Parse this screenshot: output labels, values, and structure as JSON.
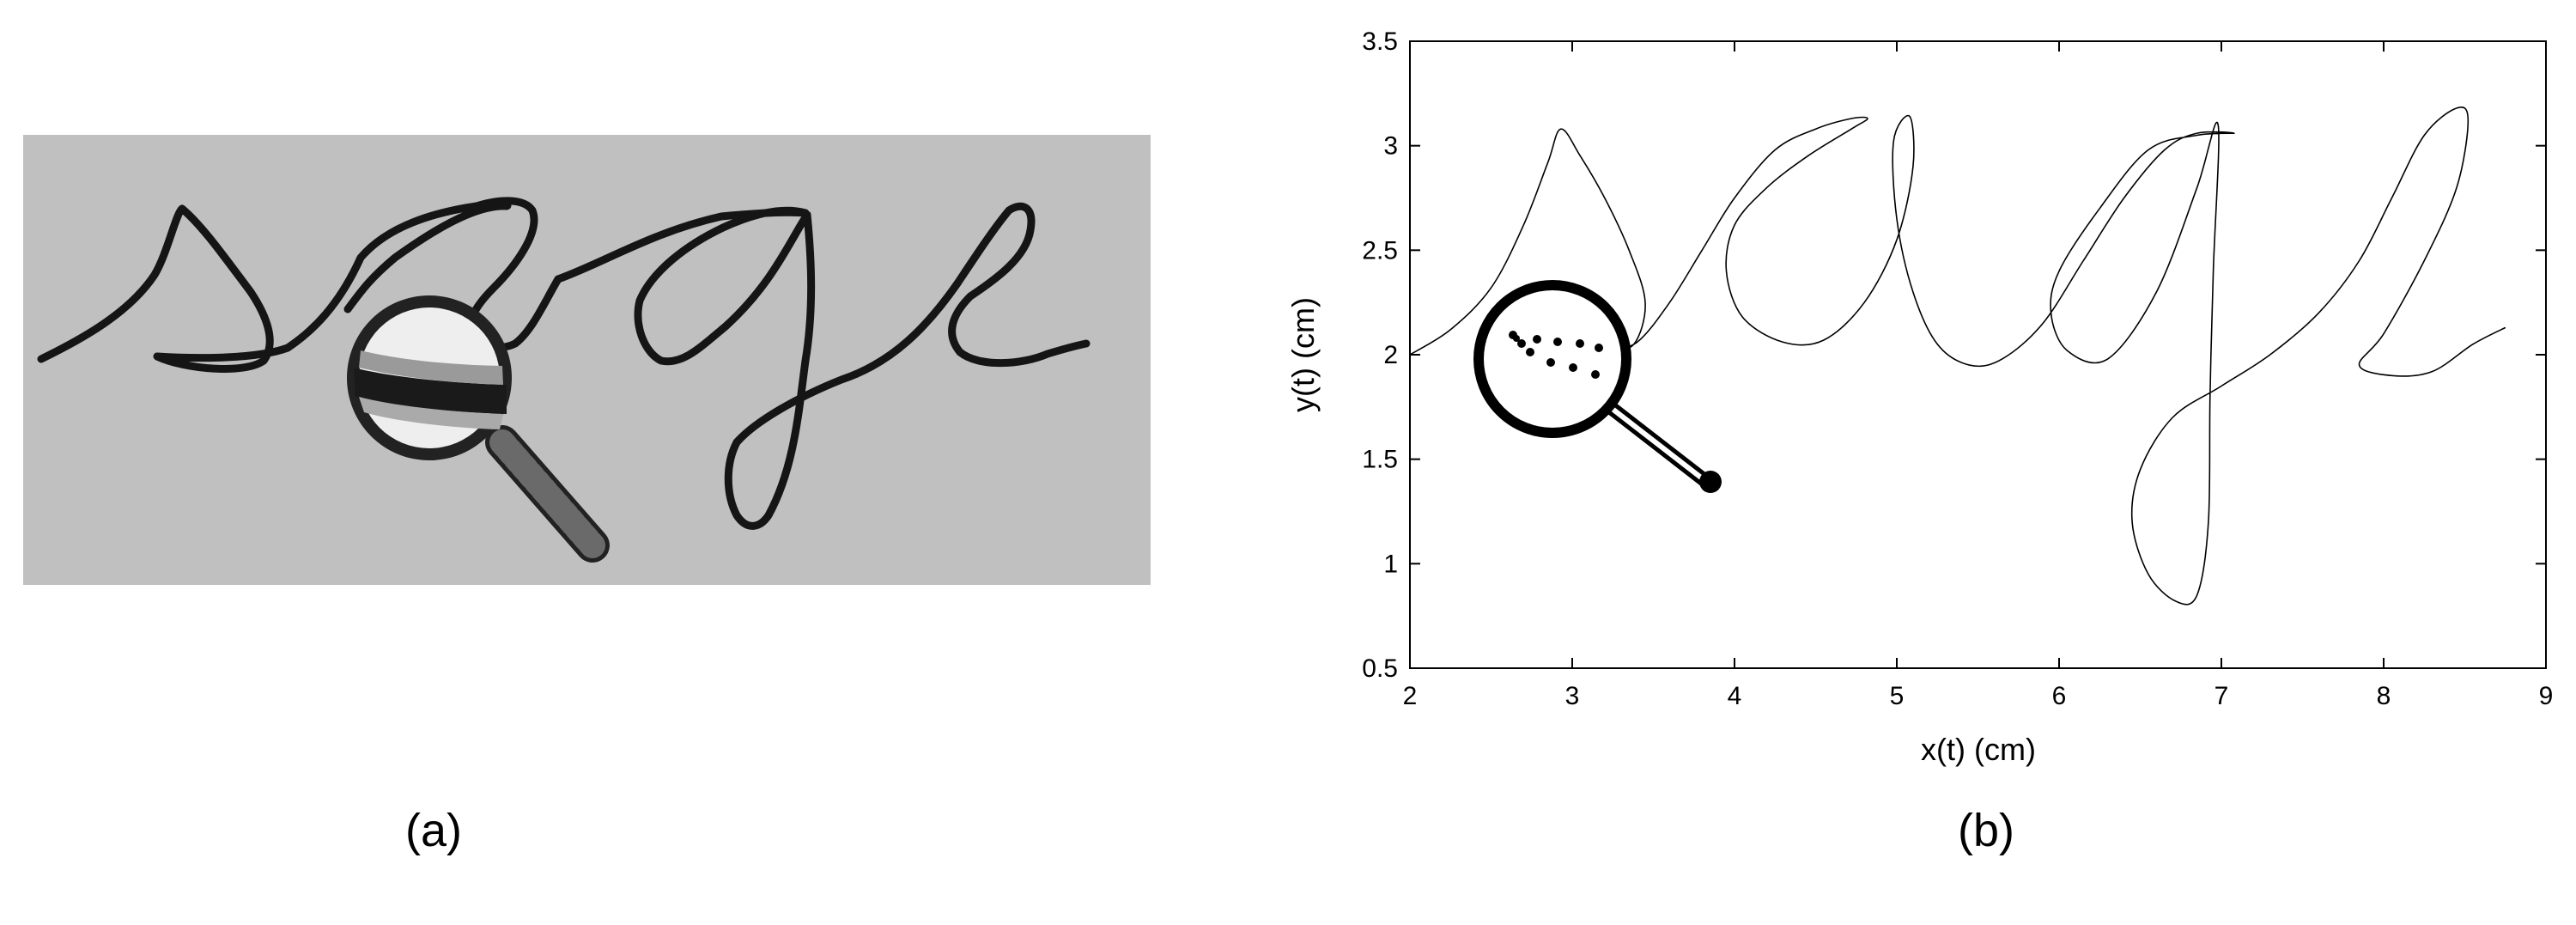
{
  "panels": {
    "a": {
      "label": "(a)",
      "description_word": "sage"
    },
    "b": {
      "label": "(b)"
    }
  },
  "colors": {
    "panel_a_background": "#c0c0c0",
    "ink": "#111111",
    "plot_background": "#ffffff"
  },
  "icons": {
    "panel_a": "magnifier-icon",
    "panel_b": "magnifier-icon"
  },
  "chart_data": {
    "type": "line",
    "xlabel": "x(t) (cm)",
    "ylabel": "y(t) (cm)",
    "xlim": [
      2,
      9
    ],
    "ylim": [
      0.5,
      3.5
    ],
    "xticks": [
      "2",
      "3",
      "4",
      "5",
      "6",
      "7",
      "8",
      "9"
    ],
    "yticks": [
      "0.5",
      "1",
      "1.5",
      "2",
      "2.5",
      "3",
      "3.5"
    ],
    "grid": false,
    "series": [
      {
        "points": [
          [
            2.0,
            2.0
          ],
          [
            2.25,
            2.12
          ],
          [
            2.5,
            2.32
          ],
          [
            2.7,
            2.62
          ],
          [
            2.85,
            2.92
          ],
          [
            2.93,
            3.08
          ],
          [
            3.05,
            2.95
          ],
          [
            3.2,
            2.75
          ],
          [
            3.35,
            2.5
          ],
          [
            3.45,
            2.25
          ],
          [
            3.38,
            2.05
          ],
          [
            3.22,
            2.02
          ],
          [
            3.4,
            2.06
          ],
          [
            3.6,
            2.25
          ],
          [
            3.8,
            2.5
          ],
          [
            4.0,
            2.75
          ],
          [
            4.25,
            2.98
          ],
          [
            4.5,
            3.08
          ],
          [
            4.72,
            3.13
          ],
          [
            4.82,
            3.13
          ],
          [
            4.72,
            3.08
          ],
          [
            4.45,
            2.95
          ],
          [
            4.2,
            2.8
          ],
          [
            4.0,
            2.62
          ],
          [
            3.95,
            2.4
          ],
          [
            4.05,
            2.18
          ],
          [
            4.3,
            2.06
          ],
          [
            4.55,
            2.07
          ],
          [
            4.8,
            2.25
          ],
          [
            5.0,
            2.55
          ],
          [
            5.1,
            2.9
          ],
          [
            5.08,
            3.14
          ],
          [
            4.98,
            3.02
          ],
          [
            5.0,
            2.65
          ],
          [
            5.1,
            2.3
          ],
          [
            5.25,
            2.05
          ],
          [
            5.45,
            1.95
          ],
          [
            5.65,
            1.98
          ],
          [
            5.9,
            2.15
          ],
          [
            6.15,
            2.45
          ],
          [
            6.4,
            2.75
          ],
          [
            6.65,
            2.98
          ],
          [
            6.85,
            3.06
          ],
          [
            7.08,
            3.06
          ],
          [
            6.85,
            3.05
          ],
          [
            6.55,
            2.98
          ],
          [
            6.25,
            2.7
          ],
          [
            6.0,
            2.4
          ],
          [
            5.95,
            2.2
          ],
          [
            6.05,
            2.02
          ],
          [
            6.3,
            1.98
          ],
          [
            6.6,
            2.3
          ],
          [
            6.85,
            2.8
          ],
          [
            6.98,
            3.1
          ],
          [
            6.95,
            2.4
          ],
          [
            6.93,
            1.8
          ],
          [
            6.92,
            1.2
          ],
          [
            6.85,
            0.85
          ],
          [
            6.72,
            0.82
          ],
          [
            6.55,
            0.95
          ],
          [
            6.45,
            1.2
          ],
          [
            6.5,
            1.45
          ],
          [
            6.7,
            1.7
          ],
          [
            7.0,
            1.85
          ],
          [
            7.3,
            2.0
          ],
          [
            7.6,
            2.2
          ],
          [
            7.85,
            2.45
          ],
          [
            8.05,
            2.75
          ],
          [
            8.25,
            3.05
          ],
          [
            8.45,
            3.18
          ],
          [
            8.52,
            3.12
          ],
          [
            8.45,
            2.8
          ],
          [
            8.25,
            2.45
          ],
          [
            8.0,
            2.1
          ],
          [
            7.85,
            1.95
          ],
          [
            8.05,
            1.9
          ],
          [
            8.3,
            1.92
          ],
          [
            8.55,
            2.05
          ],
          [
            8.75,
            2.13
          ]
        ]
      }
    ],
    "annotation": {
      "icon": "magnifier-icon"
    }
  }
}
